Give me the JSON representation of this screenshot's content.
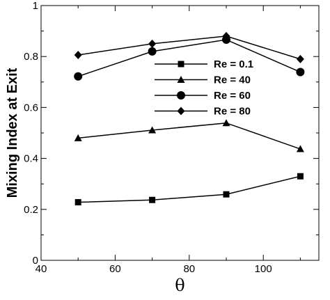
{
  "chart_data": {
    "type": "line",
    "title": "",
    "xlabel": "θ",
    "ylabel": "Mixing Index at Exit",
    "xlim": [
      40,
      115
    ],
    "ylim": [
      0,
      1
    ],
    "xticks": [
      40,
      60,
      80,
      100
    ],
    "yticks": [
      0,
      0.2,
      0.4,
      0.6,
      0.8,
      1
    ],
    "ytick_labels": [
      "0",
      "0.2",
      "0.4",
      "0.6",
      "0.8",
      "1"
    ],
    "x": [
      50,
      70,
      90,
      110
    ],
    "grid": false,
    "legend_position": "center-right",
    "series": [
      {
        "name": "Re = 0.1",
        "marker": "square",
        "values": [
          0.228,
          0.237,
          0.259,
          0.33
        ]
      },
      {
        "name": "Re = 40",
        "marker": "triangle",
        "values": [
          0.48,
          0.511,
          0.539,
          0.437
        ]
      },
      {
        "name": "Re = 60",
        "marker": "circle",
        "values": [
          0.722,
          0.82,
          0.866,
          0.739
        ]
      },
      {
        "name": "Re = 80",
        "marker": "diamond",
        "values": [
          0.806,
          0.85,
          0.88,
          0.79
        ]
      }
    ],
    "colors": {
      "line": "#000000",
      "marker": "#000000"
    }
  }
}
